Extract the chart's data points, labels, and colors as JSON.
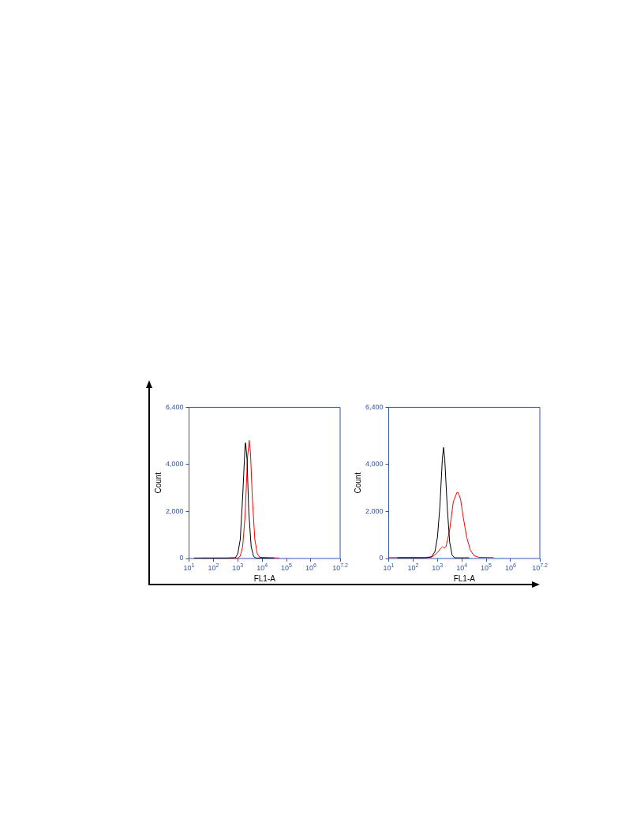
{
  "chart_data": [
    {
      "type": "line",
      "xlabel": "FL1-A",
      "ylabel": "Count",
      "log": "x",
      "grid": false,
      "legend": false,
      "marker": "none",
      "xlim": [
        10,
        15848932
      ],
      "ylim": [
        0,
        6400
      ],
      "xticks": [
        {
          "value": 10,
          "label": "10$^{1}$"
        },
        {
          "value": 100,
          "label": "10$^{2}$"
        },
        {
          "value": 1000,
          "label": "10$^{3}$"
        },
        {
          "value": 10000,
          "label": "10$^{4}$"
        },
        {
          "value": 100000,
          "label": "10$^{5}$"
        },
        {
          "value": 1000000,
          "label": "10$^{6}$"
        },
        {
          "value": 15848932,
          "label": "10$^{7.2}$"
        }
      ],
      "yticks": [
        0,
        {
          "value": 2000,
          "label": "2,000"
        },
        {
          "value": 4000,
          "label": "4,000"
        },
        {
          "value": 6400,
          "label": "6,400"
        }
      ],
      "series": [
        {
          "color": "#000000",
          "x": [
            16,
            316,
            794,
            1000,
            1259,
            1585,
            1995,
            2089,
            2399,
            2818,
            3548,
            4467,
            5623,
            31623
          ],
          "values": [
            20,
            20,
            30,
            200,
            800,
            2600,
            4800,
            4900,
            4200,
            2000,
            500,
            80,
            20,
            20
          ]
        },
        {
          "color": "#ff0000",
          "x": [
            32,
            1000,
            1259,
            1585,
            1995,
            2512,
            2951,
            3311,
            3981,
            5012,
            6310,
            7943,
            50119
          ],
          "values": [
            20,
            20,
            100,
            500,
            1800,
            4300,
            5000,
            4500,
            2500,
            800,
            200,
            50,
            20
          ]
        }
      ]
    },
    {
      "type": "line",
      "xlabel": "FL1-A",
      "ylabel": "Count",
      "log": "x",
      "grid": false,
      "legend": false,
      "marker": "none",
      "xlim": [
        10,
        15848932
      ],
      "ylim": [
        0,
        6400
      ],
      "xticks": [
        {
          "value": 10,
          "label": "10$^{1}$"
        },
        {
          "value": 100,
          "label": "10$^{2}$"
        },
        {
          "value": 1000,
          "label": "10$^{3}$"
        },
        {
          "value": 10000,
          "label": "10$^{4}$"
        },
        {
          "value": 100000,
          "label": "10$^{5}$"
        },
        {
          "value": 1000000,
          "label": "10$^{6}$"
        },
        {
          "value": 15848932,
          "label": "10$^{7.2}$"
        }
      ],
      "yticks": [
        0,
        {
          "value": 2000,
          "label": "2,000"
        },
        {
          "value": 4000,
          "label": "4,000"
        },
        {
          "value": 6400,
          "label": "6,400"
        }
      ],
      "series": [
        {
          "color": "#000000",
          "x": [
            23,
            316,
            562,
            794,
            1000,
            1259,
            1585,
            1778,
            1995,
            2512,
            3162,
            3981,
            5012,
            19953
          ],
          "values": [
            30,
            30,
            60,
            300,
            900,
            2200,
            4200,
            4700,
            4200,
            2200,
            700,
            150,
            30,
            30
          ]
        },
        {
          "color": "#ff0000",
          "x": [
            10,
            316,
            631,
            1000,
            1413,
            1585,
            1905,
            2239,
            3162,
            4467,
            6310,
            7079,
            8913,
            11220,
            15849,
            22387,
            31623,
            50119,
            199526
          ],
          "values": [
            40,
            40,
            80,
            250,
            450,
            500,
            430,
            500,
            1200,
            2400,
            2800,
            2800,
            2500,
            1800,
            900,
            350,
            120,
            50,
            40
          ]
        }
      ]
    }
  ]
}
